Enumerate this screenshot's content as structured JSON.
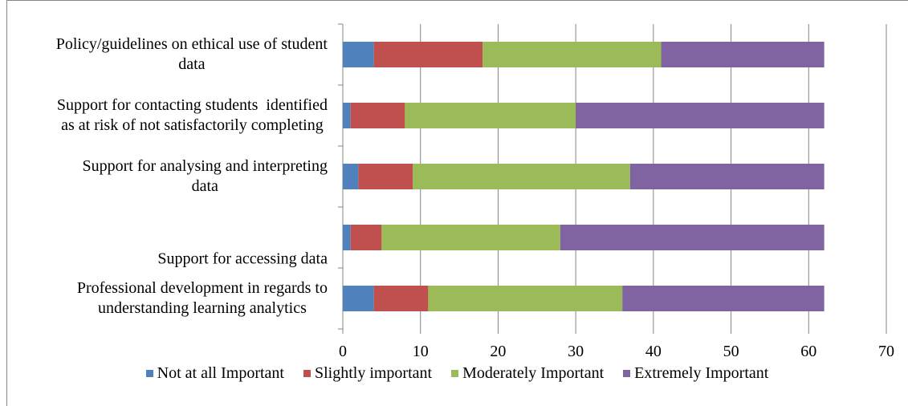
{
  "chart_data": {
    "type": "stacked-barh",
    "categories": [
      [
        "Policy/guidelines on ethical use of student",
        "data"
      ],
      [
        "Support for contacting students  identified",
        "as at risk of not satisfactorily completing"
      ],
      [
        "Support for analysing and interpreting",
        "data"
      ],
      [
        "Support for accessing data"
      ],
      [
        "Professional development in regards to",
        "understanding learning analytics"
      ]
    ],
    "series": [
      {
        "name": "Not at all Important",
        "color": "#4f81bd",
        "values": [
          4,
          1,
          2,
          1,
          4
        ]
      },
      {
        "name": "Slightly important",
        "color": "#c0504d",
        "values": [
          14,
          7,
          7,
          4,
          7
        ]
      },
      {
        "name": "Moderately Important",
        "color": "#9bbb59",
        "values": [
          23,
          22,
          28,
          23,
          25
        ]
      },
      {
        "name": "Extremely Important",
        "color": "#8064a2",
        "values": [
          21,
          32,
          25,
          34,
          26
        ]
      }
    ],
    "xlim": [
      0,
      70
    ],
    "xticks": [
      0,
      10,
      20,
      30,
      40,
      50,
      60,
      70
    ],
    "grid": true,
    "legend": "bottom"
  }
}
